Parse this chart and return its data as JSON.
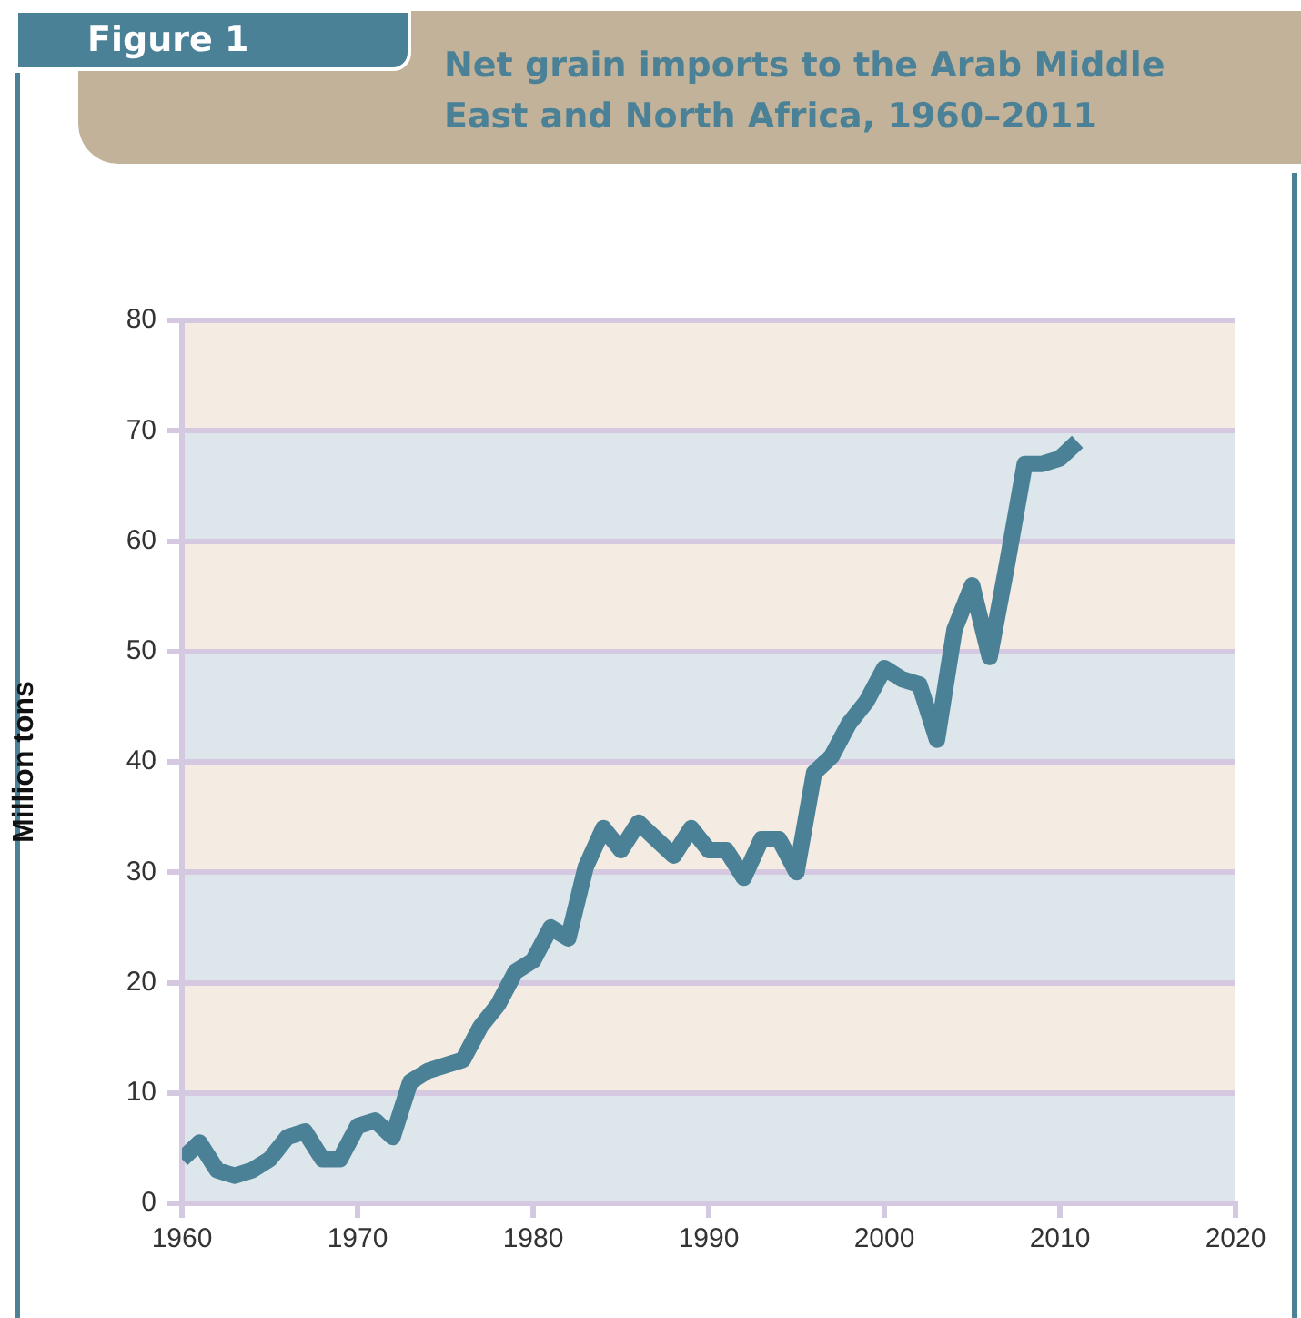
{
  "chart_data": {
    "type": "line",
    "title": "Net grain imports to the Arab Middle East and North Africa, 1960–2011",
    "ylabel": "Million tons",
    "annotations": [
      "Figure 1"
    ],
    "x": [
      1960,
      1961,
      1962,
      1963,
      1964,
      1965,
      1966,
      1967,
      1968,
      1969,
      1970,
      1971,
      1972,
      1973,
      1974,
      1975,
      1976,
      1977,
      1978,
      1979,
      1980,
      1981,
      1982,
      1983,
      1984,
      1985,
      1986,
      1987,
      1988,
      1989,
      1990,
      1991,
      1992,
      1993,
      1994,
      1995,
      1996,
      1997,
      1998,
      1999,
      2000,
      2001,
      2002,
      2003,
      2004,
      2005,
      2006,
      2007,
      2008,
      2009,
      2010,
      2011
    ],
    "series": [
      {
        "color": "#4a8196",
        "values": [
          4,
          5.5,
          3,
          2.5,
          3,
          4,
          6,
          6.5,
          4,
          4,
          7,
          7.5,
          6,
          11,
          12,
          12.5,
          13,
          16,
          18,
          21,
          22,
          25,
          24,
          30.5,
          34,
          32,
          34.5,
          33,
          31.5,
          34,
          32,
          32,
          29.5,
          33,
          33,
          30,
          39,
          40.5,
          43.5,
          45.5,
          48.5,
          47.5,
          47,
          42,
          52,
          56,
          49.5,
          58,
          67,
          67,
          67.5,
          69
        ]
      }
    ],
    "xlim": [
      1960,
      2020
    ],
    "xticks": [
      1960,
      1970,
      1980,
      1990,
      2000,
      2010,
      2020
    ],
    "ylim": [
      0,
      80
    ],
    "yticks": [
      0,
      10,
      20,
      30,
      40,
      50,
      60,
      70,
      80
    ],
    "bands": [
      {
        "axis": "y",
        "from": 0,
        "to": 10,
        "color": "#dce6eb"
      },
      {
        "axis": "y",
        "from": 10,
        "to": 20,
        "color": "#f4ebe3"
      },
      {
        "axis": "y",
        "from": 20,
        "to": 30,
        "color": "#dce6eb"
      },
      {
        "axis": "y",
        "from": 30,
        "to": 40,
        "color": "#f4ebe3"
      },
      {
        "axis": "y",
        "from": 40,
        "to": 50,
        "color": "#dce6eb"
      },
      {
        "axis": "y",
        "from": 50,
        "to": 60,
        "color": "#f4ebe3"
      },
      {
        "axis": "y",
        "from": 60,
        "to": 70,
        "color": "#dce6eb"
      },
      {
        "axis": "y",
        "from": 70,
        "to": 80,
        "color": "#f4ebe3"
      }
    ],
    "grid": "y",
    "legend": false,
    "marker": "none",
    "line_style": "solid"
  }
}
